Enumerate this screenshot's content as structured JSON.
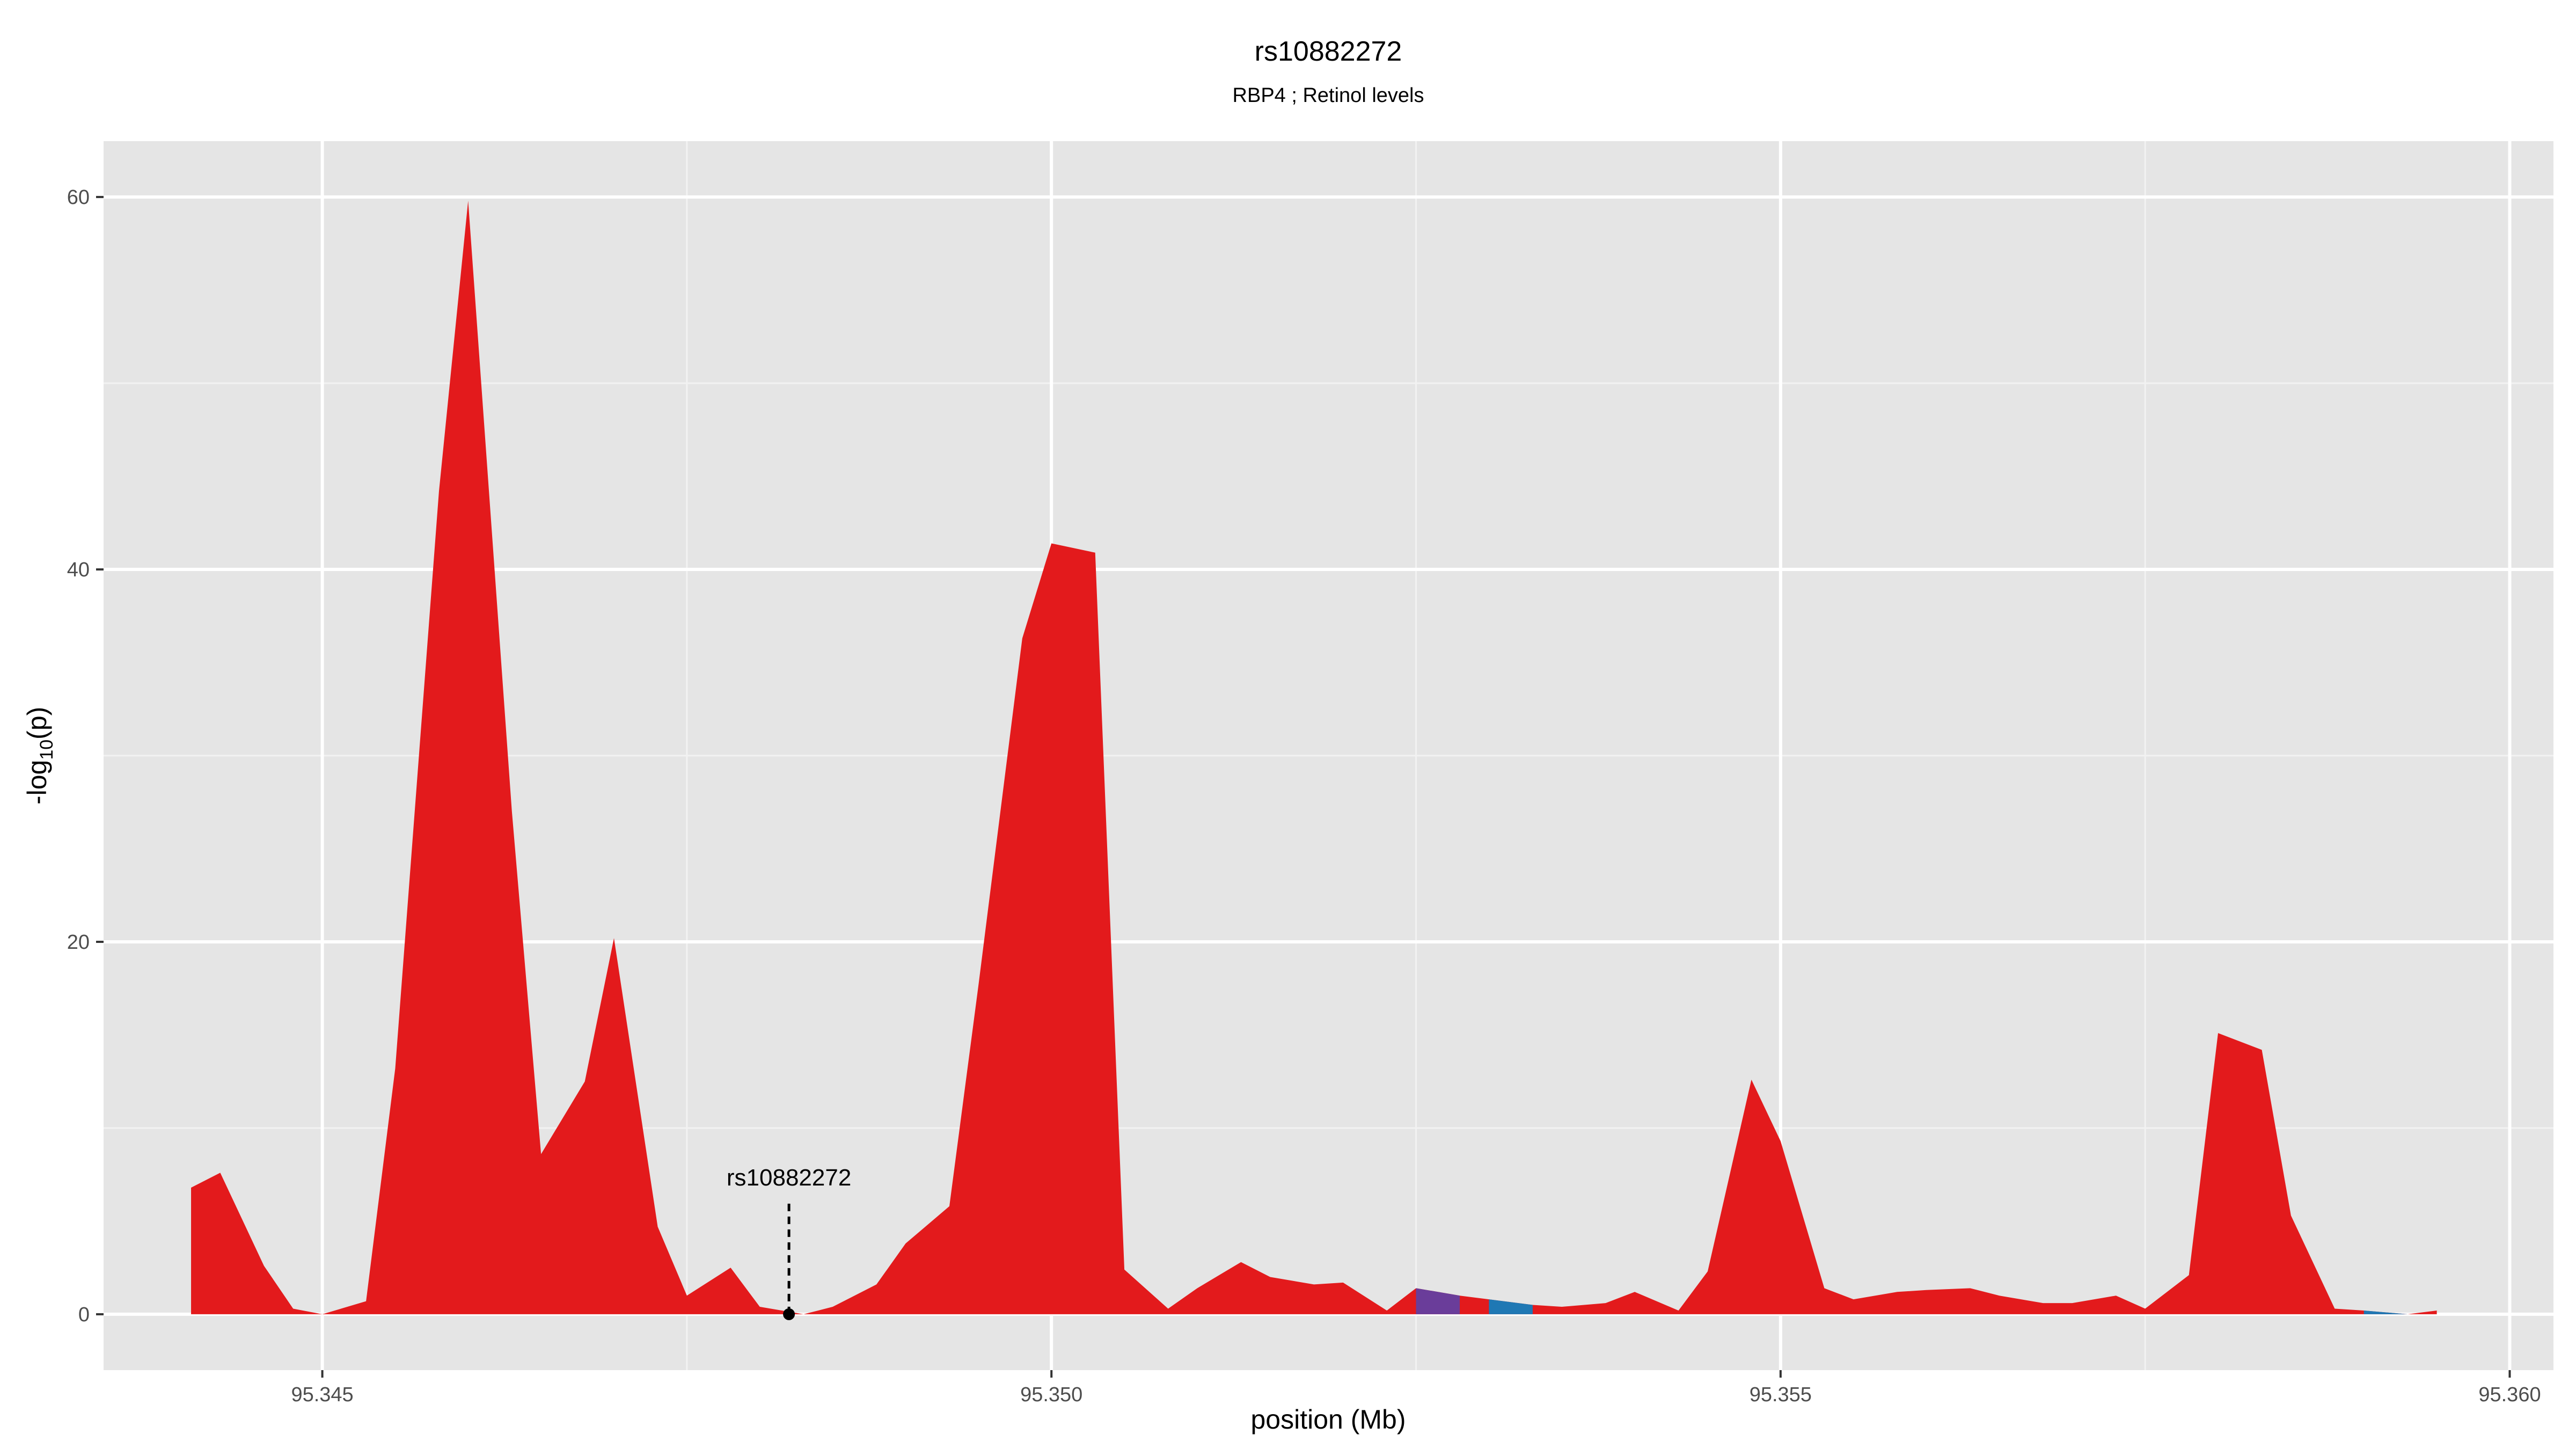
{
  "chart_data": {
    "type": "area",
    "title": "rs10882272",
    "subtitle": "RBP4 ; Retinol levels",
    "xlabel": "position (Mb)",
    "ylabel_main": "-log",
    "ylabel_sub": "10",
    "ylabel_tail": "(p)",
    "xlim": [
      95.3435,
      95.3603
    ],
    "ylim": [
      -3,
      63
    ],
    "x_ticks": [
      95.345,
      95.35,
      95.355,
      95.36
    ],
    "x_tick_labels": [
      "95.345",
      "95.350",
      "95.355",
      "95.360"
    ],
    "x_minor_ticks": [
      95.3475,
      95.3525,
      95.3575
    ],
    "y_ticks": [
      0,
      20,
      40,
      60
    ],
    "y_tick_labels": [
      "0",
      "20",
      "40",
      "60"
    ],
    "y_minor_ticks": [
      10,
      30,
      50
    ],
    "grid": true,
    "colors": {
      "panel_bg": "#e5e5e5",
      "grid": "#ffffff",
      "fill": "#e31a1c",
      "fill_purple": "#6a3d9a",
      "fill_blue": "#1f78b4",
      "text": "#000000",
      "tick_text": "#4d4d4d"
    },
    "series": [
      {
        "x": [
          95.3441,
          95.3443,
          95.3446,
          95.3448,
          95.345,
          95.3453,
          95.3455,
          95.3458,
          95.346,
          95.3463,
          95.3465,
          95.3468,
          95.347,
          95.3473,
          95.3475,
          95.3478,
          95.348,
          95.3483,
          95.3485,
          95.3488,
          95.349,
          95.3493,
          95.3495,
          95.3498,
          95.35,
          95.3503,
          95.3505,
          95.3508,
          95.351,
          95.3513,
          95.3515,
          95.3518,
          95.352,
          95.3523,
          95.3525,
          95.3528,
          95.353,
          95.3533,
          95.3535,
          95.3538,
          95.354,
          95.3543,
          95.3545,
          95.3548,
          95.355,
          95.3553,
          95.3555,
          95.3558,
          95.356,
          95.3563,
          95.3565,
          95.3568,
          95.357,
          95.3573,
          95.3575,
          95.3578,
          95.358,
          95.3583,
          95.3585,
          95.3588,
          95.359,
          95.3593,
          95.3595
        ],
        "values": [
          6.8,
          7.6,
          2.6,
          0.3,
          0.0,
          0.7,
          13.2,
          44.2,
          59.8,
          27.0,
          8.6,
          12.5,
          20.2,
          4.7,
          1.0,
          2.5,
          0.4,
          0.0,
          0.4,
          1.6,
          3.8,
          5.8,
          17.7,
          36.3,
          41.4,
          40.9,
          2.4,
          0.3,
          1.4,
          2.8,
          2.0,
          1.6,
          1.7,
          0.2,
          1.4,
          1.0,
          0.8,
          0.5,
          0.4,
          0.6,
          1.2,
          0.2,
          2.3,
          12.6,
          9.3,
          1.4,
          0.8,
          1.2,
          1.3,
          1.4,
          1.0,
          0.6,
          0.6,
          1.0,
          0.3,
          2.1,
          15.1,
          14.2,
          5.3,
          0.3,
          0.2,
          0.0,
          0.2
        ]
      }
    ],
    "highlight_segments": [
      {
        "x_start": 95.3525,
        "x_end": 95.3528,
        "color": "purple"
      },
      {
        "x_start": 95.353,
        "x_end": 95.3533,
        "color": "blue"
      },
      {
        "x_start": 95.359,
        "x_end": 95.3593,
        "color": "blue"
      }
    ],
    "annotation": {
      "label": "rs10882272",
      "x": 95.3482,
      "y": 0.0
    }
  }
}
